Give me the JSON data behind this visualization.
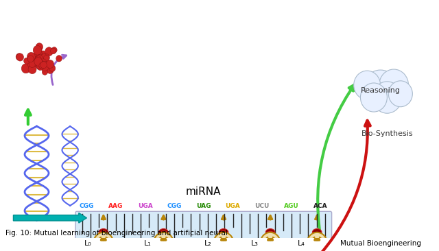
{
  "title": "miRNA",
  "caption": "Fig. 10: Mutual learning of bioengineering and artificial neural",
  "mirna_codons": [
    "CGG",
    "AAG",
    "UGA",
    "CGG",
    "UAG",
    "UGA",
    "UCU",
    "AGU",
    "ACA"
  ],
  "codon_colors": [
    "#1e90ff",
    "#ff2222",
    "#cc44cc",
    "#1e90ff",
    "#228800",
    "#ddaa00",
    "#888888",
    "#55cc22",
    "#222222"
  ],
  "layer_labels": [
    "L₀",
    "L₁",
    "L₂",
    "L₃",
    "L₄"
  ],
  "mutual_bioengineering": "Mutual Bioengineering",
  "reasoning_label": "Reasoning",
  "biosynthesis_label": "Bio-Synthesis",
  "node_color": "#8b0000",
  "line_color_red": "#ff8888",
  "line_color_blue": "#8888ff",
  "bg_color": "#ffffff",
  "bar_fill": "#d6eaf8",
  "arrow_color": "#b8860b"
}
